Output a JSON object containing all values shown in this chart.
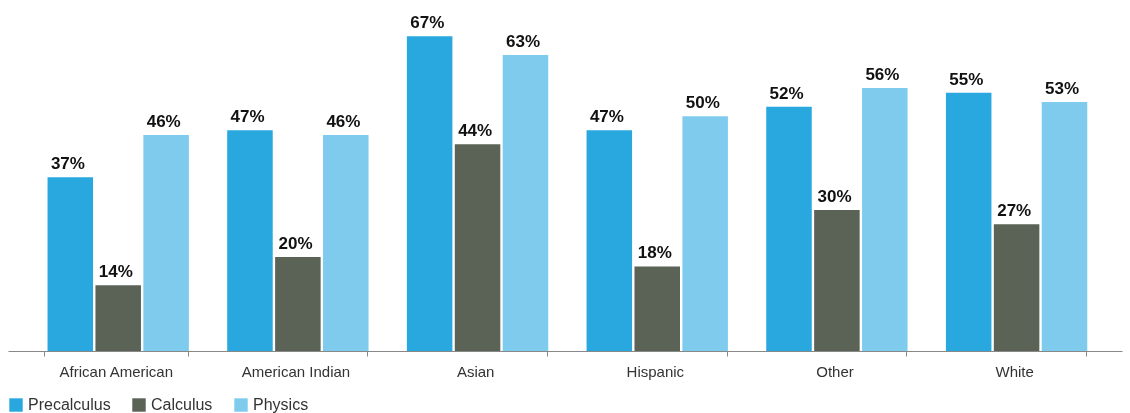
{
  "chart_data": {
    "type": "bar",
    "categories": [
      "African American",
      "American Indian",
      "Asian",
      "Hispanic",
      "Other",
      "White"
    ],
    "series": [
      {
        "name": "Precalculus",
        "color": "#29a8e0",
        "values": [
          37,
          47,
          67,
          47,
          52,
          55
        ],
        "value_labels": [
          "37%",
          "47%",
          "67%",
          "47%",
          "52%",
          "55%"
        ]
      },
      {
        "name": "Calculus",
        "color": "#5a6356",
        "values": [
          14,
          20,
          44,
          18,
          30,
          27
        ],
        "value_labels": [
          "14%",
          "20%",
          "44%",
          "18%",
          "30%",
          "27%"
        ]
      },
      {
        "name": "Physics",
        "color": "#7ecbed",
        "values": [
          46,
          46,
          63,
          50,
          56,
          53
        ],
        "value_labels": [
          "46%",
          "46%",
          "63%",
          "50%",
          "56%",
          "53%"
        ]
      }
    ],
    "grid": false,
    "legend": "bottom"
  }
}
